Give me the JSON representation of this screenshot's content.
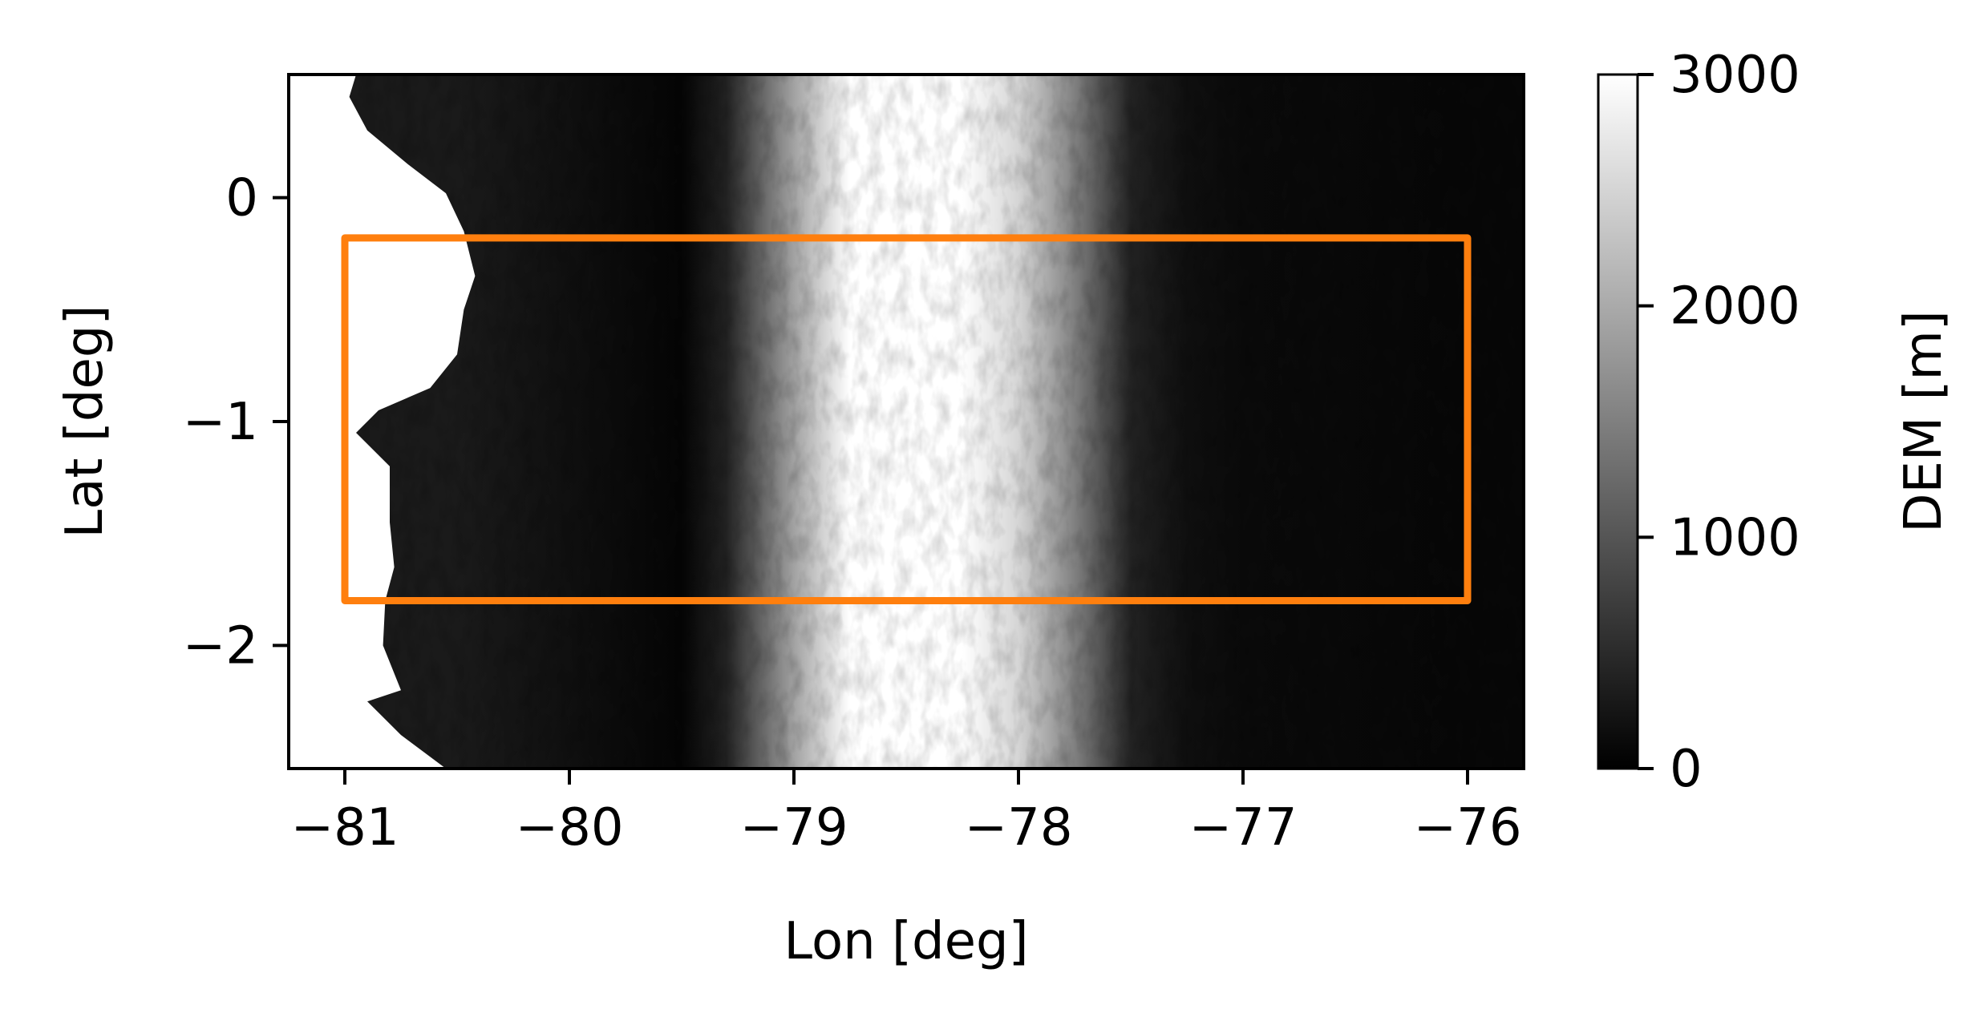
{
  "chart_data": {
    "type": "heatmap",
    "title": "",
    "xlabel": "Lon [deg]",
    "ylabel": "Lat [deg]",
    "xlim": [
      -81.25,
      -75.75
    ],
    "ylim": [
      -2.55,
      0.55
    ],
    "xticks": [
      -81,
      -80,
      -79,
      -78,
      -77,
      -76
    ],
    "yticks": [
      0,
      -1,
      -2
    ],
    "xtick_labels": [
      "−81",
      "−80",
      "−79",
      "−78",
      "−77",
      "−76"
    ],
    "ytick_labels": [
      "0",
      "−1",
      "−2"
    ],
    "grid": false,
    "colormap": "gray",
    "colorbar": {
      "label": "DEM [m]",
      "range": [
        0,
        3000
      ],
      "ticks": [
        0,
        1000,
        2000,
        3000
      ],
      "tick_labels": [
        "0",
        "1000",
        "2000",
        "3000"
      ]
    },
    "region_box": {
      "lon_min": -81.0,
      "lon_max": -76.0,
      "lat_min": -1.8,
      "lat_max": -0.18,
      "color": "#ff7f0e"
    },
    "coastline": [
      [
        -80.95,
        0.55
      ],
      [
        -80.98,
        0.45
      ],
      [
        -80.9,
        0.3
      ],
      [
        -80.72,
        0.15
      ],
      [
        -80.55,
        0.02
      ],
      [
        -80.47,
        -0.15
      ],
      [
        -80.42,
        -0.35
      ],
      [
        -80.47,
        -0.5
      ],
      [
        -80.5,
        -0.7
      ],
      [
        -80.62,
        -0.85
      ],
      [
        -80.85,
        -0.95
      ],
      [
        -80.95,
        -1.05
      ],
      [
        -80.8,
        -1.2
      ],
      [
        -80.8,
        -1.45
      ],
      [
        -80.78,
        -1.65
      ],
      [
        -80.82,
        -1.8
      ],
      [
        -80.83,
        -2.0
      ],
      [
        -80.75,
        -2.2
      ],
      [
        -80.9,
        -2.25
      ],
      [
        -80.75,
        -2.4
      ],
      [
        -80.55,
        -2.55
      ]
    ],
    "terrain_profile": {
      "lon": [
        -80.5,
        -79.5,
        -79.3,
        -79.0,
        -78.75,
        -78.5,
        -78.25,
        -78.0,
        -77.75,
        -77.5,
        -77.25,
        -77.0,
        -76.0
      ],
      "elevation_m": [
        300,
        60,
        400,
        1900,
        3000,
        3000,
        3000,
        2500,
        1500,
        400,
        180,
        120,
        80
      ]
    }
  },
  "colors": {
    "box": "#ff7f0e",
    "axes": "#000000",
    "background": "#ffffff"
  }
}
